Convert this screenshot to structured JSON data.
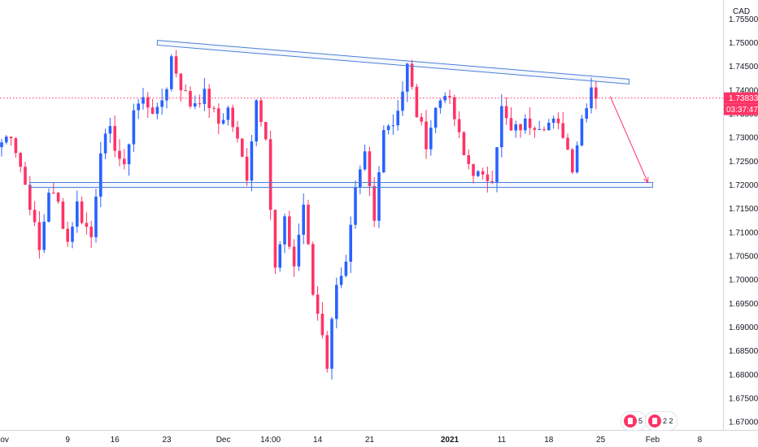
{
  "chart_data": {
    "type": "candlestick",
    "currency_label": "CAD",
    "last_price": "1.73833",
    "countdown": "03:37:47",
    "y_ticks": [
      "1.75500",
      "1.75000",
      "1.74500",
      "1.74000",
      "1.73500",
      "1.73000",
      "1.72500",
      "1.72000",
      "1.71500",
      "1.71000",
      "1.70500",
      "1.70000",
      "1.69500",
      "1.69000",
      "1.68500",
      "1.68000",
      "1.67500",
      "1.67000"
    ],
    "y_tick_values": [
      1.755,
      1.75,
      1.745,
      1.74,
      1.735,
      1.73,
      1.725,
      1.72,
      1.715,
      1.71,
      1.705,
      1.7,
      1.695,
      1.69,
      1.685,
      1.68,
      1.675,
      1.67
    ],
    "ylim": [
      1.6695,
      1.7573
    ],
    "x_ticks": [
      {
        "label": "Nov",
        "index": 0
      },
      {
        "label": "9",
        "index": 14
      },
      {
        "label": "16",
        "index": 24
      },
      {
        "label": "23",
        "index": 35
      },
      {
        "label": "Dec",
        "index": 47
      },
      {
        "label": "14:00",
        "index": 57
      },
      {
        "label": "14",
        "index": 67
      },
      {
        "label": "21",
        "index": 78
      },
      {
        "label": "2021",
        "index": 95,
        "bold": true
      },
      {
        "label": "11",
        "index": 106
      },
      {
        "label": "18",
        "index": 116
      },
      {
        "label": "25",
        "index": 127
      },
      {
        "label": "Feb",
        "index": 138
      },
      {
        "label": "8",
        "index": 148
      }
    ],
    "price_path": [
      [
        0,
        1.729
      ],
      [
        2,
        1.731
      ],
      [
        4,
        1.724
      ],
      [
        6,
        1.716
      ],
      [
        8,
        1.706
      ],
      [
        10,
        1.719
      ],
      [
        12,
        1.716
      ],
      [
        14,
        1.708
      ],
      [
        16,
        1.716
      ],
      [
        17,
        1.713
      ],
      [
        19,
        1.709
      ],
      [
        21,
        1.728
      ],
      [
        23,
        1.731
      ],
      [
        26,
        1.723
      ],
      [
        28,
        1.736
      ],
      [
        30,
        1.738
      ],
      [
        33,
        1.735
      ],
      [
        35,
        1.741
      ],
      [
        36,
        1.747
      ],
      [
        38,
        1.741
      ],
      [
        40,
        1.737
      ],
      [
        43,
        1.739
      ],
      [
        46,
        1.733
      ],
      [
        48,
        1.736
      ],
      [
        50,
        1.729
      ],
      [
        52,
        1.722
      ],
      [
        54,
        1.738
      ],
      [
        56,
        1.731
      ],
      [
        57,
        1.715
      ],
      [
        58,
        1.702
      ],
      [
        60,
        1.712
      ],
      [
        62,
        1.703
      ],
      [
        64,
        1.716
      ],
      [
        66,
        1.697
      ],
      [
        68,
        1.689
      ],
      [
        69,
        1.682
      ],
      [
        71,
        1.7
      ],
      [
        73,
        1.703
      ],
      [
        75,
        1.718
      ],
      [
        77,
        1.726
      ],
      [
        79,
        1.712
      ],
      [
        81,
        1.733
      ],
      [
        83,
        1.733
      ],
      [
        85,
        1.74
      ],
      [
        86,
        1.745
      ],
      [
        88,
        1.735
      ],
      [
        90,
        1.729
      ],
      [
        92,
        1.736
      ],
      [
        94,
        1.74
      ],
      [
        96,
        1.734
      ],
      [
        98,
        1.726
      ],
      [
        100,
        1.723
      ],
      [
        102,
        1.721
      ],
      [
        104,
        1.722
      ],
      [
        106,
        1.736
      ],
      [
        108,
        1.731
      ],
      [
        111,
        1.733
      ],
      [
        114,
        1.733
      ],
      [
        117,
        1.733
      ],
      [
        119,
        1.731
      ],
      [
        121,
        1.724
      ],
      [
        123,
        1.734
      ],
      [
        125,
        1.741
      ],
      [
        126,
        1.739
      ]
    ],
    "resistance_line": {
      "start": {
        "index": 33,
        "price": 1.75
      },
      "end": {
        "index": 133,
        "price": 1.7418
      }
    },
    "support_line": {
      "start": {
        "index": 6,
        "price": 1.72
      },
      "end": {
        "index": 138,
        "price": 1.72
      }
    },
    "forecast_arrow": {
      "start": {
        "index": 129,
        "price": 1.7387
      },
      "end": {
        "index": 137,
        "price": 1.7205
      }
    },
    "events": [
      {
        "name": "event-group-1",
        "count": "5"
      },
      {
        "name": "event-group-2",
        "count": "2 2"
      }
    ],
    "colors": {
      "up": "#2962ff",
      "down": "#ff3366",
      "line": "#4a7fd6",
      "label": "#ff3366",
      "grid": "#e0e3eb"
    }
  }
}
